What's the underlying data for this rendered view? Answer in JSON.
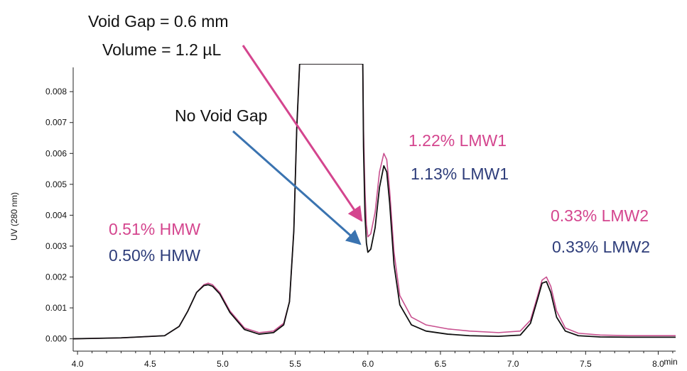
{
  "chart_data": {
    "type": "line",
    "title": "",
    "xlabel": "min",
    "ylabel": "UV (280 nm)",
    "xlim": [
      3.97,
      8.12
    ],
    "ylim": [
      -0.0004,
      0.0089
    ],
    "x_ticks": [
      "4.0",
      "4.5",
      "5.0",
      "5.5",
      "6.0",
      "6.5",
      "7.0",
      "7.5",
      "8.0"
    ],
    "y_ticks": [
      "0.000",
      "0.001",
      "0.002",
      "0.003",
      "0.004",
      "0.005",
      "0.006",
      "0.007",
      "0.008"
    ],
    "grid": false,
    "colors": {
      "void_gap": "#c8508f",
      "no_void_gap": "#111111",
      "annotation_pink": "#d4458e",
      "annotation_navy": "#2e3d7a",
      "arrow_pink": "#d4458e",
      "arrow_blue": "#3a73b0"
    },
    "series": [
      {
        "x": [
          3.97,
          4.3,
          4.6,
          4.7,
          4.76,
          4.82,
          4.87,
          4.9,
          4.93,
          4.98,
          5.05,
          5.15,
          5.25,
          5.35,
          5.42,
          5.46,
          5.49,
          5.51,
          5.53,
          5.54,
          5.545,
          5.96,
          5.965,
          5.97,
          5.98,
          5.99,
          6.0,
          6.02,
          6.05,
          6.08,
          6.11,
          6.13,
          6.15,
          6.18,
          6.22,
          6.3,
          6.4,
          6.55,
          6.7,
          6.9,
          7.05,
          7.12,
          7.17,
          7.2,
          7.23,
          7.26,
          7.3,
          7.36,
          7.45,
          7.6,
          7.8,
          8.12
        ],
        "y": [
          0.0,
          3e-05,
          0.0001,
          0.0004,
          0.0009,
          0.0015,
          0.00175,
          0.0018,
          0.00175,
          0.0015,
          0.0009,
          0.00035,
          0.0002,
          0.00025,
          0.0005,
          0.0012,
          0.0035,
          0.0068,
          0.0089,
          0.0089,
          0.0089,
          0.0089,
          0.0089,
          0.0068,
          0.0048,
          0.0037,
          0.0033,
          0.0034,
          0.0041,
          0.0054,
          0.006,
          0.0058,
          0.0048,
          0.0028,
          0.0014,
          0.0007,
          0.00045,
          0.00032,
          0.00025,
          0.0002,
          0.00025,
          0.0006,
          0.0014,
          0.0019,
          0.002,
          0.0017,
          0.0009,
          0.00035,
          0.00018,
          0.00012,
          0.0001,
          0.0001
        ]
      },
      {
        "x": [
          3.97,
          4.3,
          4.6,
          4.7,
          4.76,
          4.82,
          4.87,
          4.9,
          4.93,
          4.98,
          5.05,
          5.15,
          5.25,
          5.35,
          5.42,
          5.46,
          5.49,
          5.51,
          5.53,
          5.54,
          5.545,
          5.96,
          5.965,
          5.97,
          5.98,
          5.99,
          6.0,
          6.02,
          6.05,
          6.08,
          6.11,
          6.13,
          6.15,
          6.18,
          6.22,
          6.3,
          6.4,
          6.55,
          6.7,
          6.9,
          7.05,
          7.12,
          7.17,
          7.2,
          7.23,
          7.26,
          7.3,
          7.36,
          7.45,
          7.6,
          7.8,
          8.12
        ],
        "y": [
          0.0,
          3e-05,
          0.0001,
          0.0004,
          0.0009,
          0.0015,
          0.00172,
          0.00175,
          0.0017,
          0.00145,
          0.00085,
          0.0003,
          0.00015,
          0.0002,
          0.00045,
          0.0012,
          0.0035,
          0.0068,
          0.0089,
          0.0089,
          0.0089,
          0.0089,
          0.0089,
          0.0062,
          0.004,
          0.0031,
          0.0028,
          0.0029,
          0.0036,
          0.0049,
          0.0056,
          0.0054,
          0.0044,
          0.0024,
          0.0011,
          0.00045,
          0.00025,
          0.00015,
          0.0001,
          8e-05,
          0.00012,
          0.0005,
          0.0013,
          0.0018,
          0.00185,
          0.0015,
          0.0007,
          0.00025,
          0.0001,
          6e-05,
          5e-05,
          5e-05
        ]
      }
    ],
    "annotations": {
      "void_gap_line": "Void Gap = 0.6 mm",
      "volume_line": "Volume = 1.2 µL",
      "no_void_gap": "No Void Gap",
      "hmw_void": "0.51% HMW",
      "hmw_no_void": "0.50% HMW",
      "lmw1_void": "1.22% LMW1",
      "lmw1_no_void": "1.13% LMW1",
      "lmw2_void": "0.33% LMW2",
      "lmw2_no_void": "0.33% LMW2"
    }
  }
}
